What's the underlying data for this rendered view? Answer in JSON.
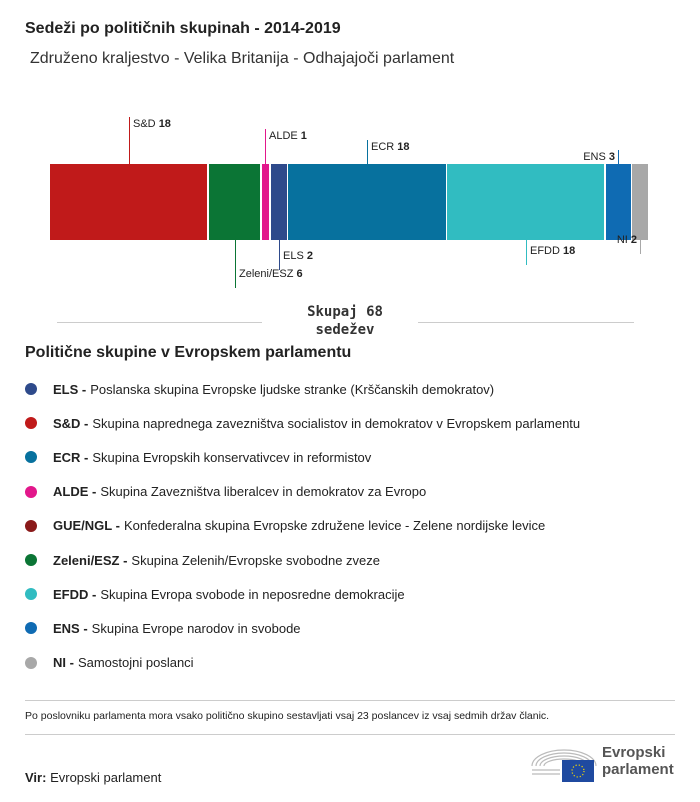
{
  "header": {
    "title": "Sedeži po političnih skupinah - 2014-2019",
    "subtitle": "Združeno kraljestvo - Velika Britanija - Odhajajoči parlament"
  },
  "chart_data": {
    "type": "bar",
    "orientation": "horizontal-stacked",
    "categories": [
      "S&D",
      "Zeleni/ESZ",
      "ALDE",
      "ELS",
      "ECR",
      "EFDD",
      "ENS",
      "NI"
    ],
    "values": [
      18,
      6,
      1,
      2,
      18,
      18,
      3,
      2
    ],
    "colors": [
      "#c01a1a",
      "#0b7535",
      "#e2178b",
      "#2e4a8b",
      "#07719e",
      "#31bcc1",
      "#0f6bb3",
      "#a8a8a8"
    ],
    "total": 68,
    "xlim": [
      0,
      68
    ]
  },
  "total_label": {
    "line1": "Skupaj 68",
    "line2": "sedežev"
  },
  "legend": {
    "title": "Politične skupine v Evropskem parlamentu",
    "items": [
      {
        "abbr": "ELS -",
        "name": "Poslanska skupina Evropske ljudske stranke (Krščanskih demokratov)",
        "color": "#2e4a8b"
      },
      {
        "abbr": "S&D -",
        "name": "Skupina naprednega zavezništva socialistov in demokratov v Evropskem parlamentu",
        "color": "#c01a1a"
      },
      {
        "abbr": "ECR -",
        "name": "Skupina Evropskih konservativcev in reformistov",
        "color": "#07719e"
      },
      {
        "abbr": "ALDE -",
        "name": "Skupina Zavezništva liberalcev in demokratov za Evropo",
        "color": "#e2178b"
      },
      {
        "abbr": "GUE/NGL -",
        "name": "Konfederalna skupina Evropske združene levice - Zelene nordijske levice",
        "color": "#8a1a1a"
      },
      {
        "abbr": "Zeleni/ESZ -",
        "name": "Skupina Zelenih/Evropske svobodne zveze",
        "color": "#0b7535"
      },
      {
        "abbr": "EFDD -",
        "name": "Skupina Evropa svobode in neposredne demokracije",
        "color": "#31bcc1"
      },
      {
        "abbr": "ENS -",
        "name": "Skupina Evrope narodov in svobode",
        "color": "#0f6bb3"
      },
      {
        "abbr": "NI -",
        "name": "Samostojni poslanci",
        "color": "#a8a8a8"
      }
    ]
  },
  "footer": {
    "note": "Po poslovniku parlamenta mora vsako politično skupino sestavljati vsaj 23 poslancev iz vsaj sedmih držav članic.",
    "source_label": "Vir:",
    "source": "Evropski parlament",
    "logo_line1": "Evropski",
    "logo_line2": "parlament"
  }
}
